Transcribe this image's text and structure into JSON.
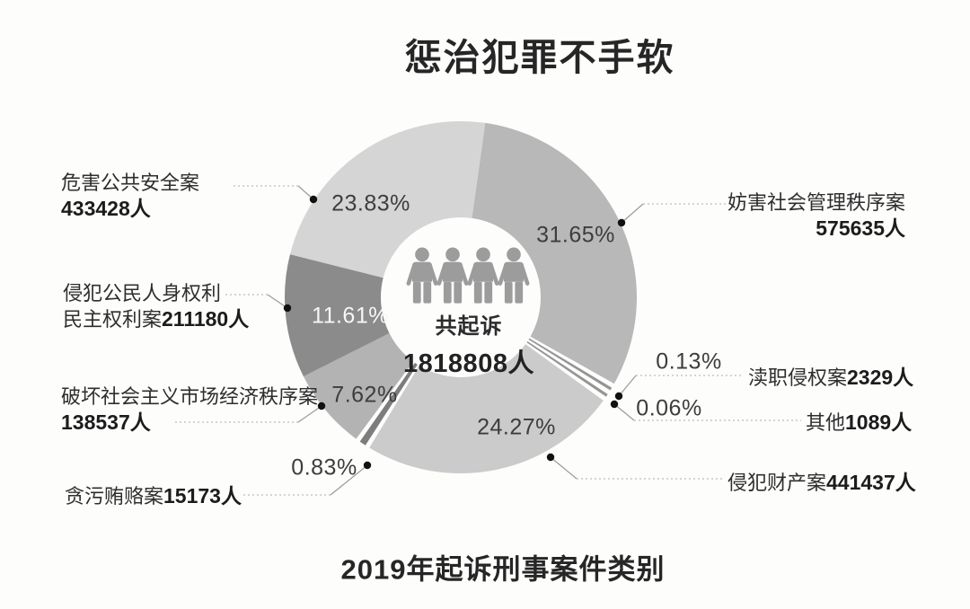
{
  "chart_data": {
    "type": "pie",
    "subtype": "donut",
    "title": "惩治犯罪不手软",
    "caption": "2019年起诉刑事案件类别",
    "legend_position": "callouts",
    "center": {
      "label": "共起诉",
      "value": "1818808人",
      "total_people": 1818808
    },
    "slices": [
      {
        "name": "妨害社会管理秩序案",
        "people": 575635,
        "pct": 31.65,
        "color": "#b8b8b8",
        "thin": false
      },
      {
        "name": "渎职侵权案",
        "people": 2329,
        "pct": 0.13,
        "color": "#959595",
        "thin": true
      },
      {
        "name": "其他",
        "people": 1089,
        "pct": 0.06,
        "color": "#959595",
        "thin": true
      },
      {
        "name": "侵犯财产案",
        "people": 441437,
        "pct": 24.27,
        "color": "#cbcbcb",
        "thin": false
      },
      {
        "name": "贪污贿赂案",
        "people": 15173,
        "pct": 0.83,
        "color": "#7d7d7d",
        "thin": true
      },
      {
        "name": "破坏社会主义市场经济秩序案",
        "people": 138537,
        "pct": 7.62,
        "color": "#b3b3b3",
        "thin": false
      },
      {
        "name": "侵犯公民人身权利民主权利案",
        "people": 211180,
        "pct": 11.61,
        "color": "#8b8b8b",
        "thin": false
      },
      {
        "name": "危害公共安全案",
        "people": 433428,
        "pct": 23.83,
        "color": "#d5d5d5",
        "thin": false
      }
    ]
  },
  "labels": {
    "l1": {
      "name": "危害公共安全案",
      "value": "433428人",
      "pct": "23.83%"
    },
    "l2": {
      "name": "侵犯公民人身权利",
      "name2": "民主权利案",
      "value": "211180人",
      "pct": "11.61%"
    },
    "l3": {
      "name": "破坏社会主义市场经济秩序案",
      "value": "138537人",
      "pct": "7.62%"
    },
    "l4": {
      "name": "贪污贿赂案",
      "value": "15173人",
      "pct": "0.83%"
    },
    "r1": {
      "name": "妨害社会管理秩序案",
      "value": "575635人",
      "pct": "31.65%"
    },
    "r2": {
      "name": "渎职侵权案",
      "value": "2329人",
      "pct": "0.13%"
    },
    "r3": {
      "name": "其他",
      "value": "1089人",
      "pct": "0.06%"
    },
    "r4": {
      "name": "侵犯财产案",
      "value": "441437人",
      "pct": "24.27%"
    }
  },
  "icons": {
    "person_icon": "person-silhouette",
    "person_count": 4,
    "person_color": "#9c9c9c"
  },
  "colors": {
    "background": "#fdfdfc",
    "text_dark": "#262626",
    "leader_line": "#c6c6c6",
    "leader_dot": "#111111"
  }
}
